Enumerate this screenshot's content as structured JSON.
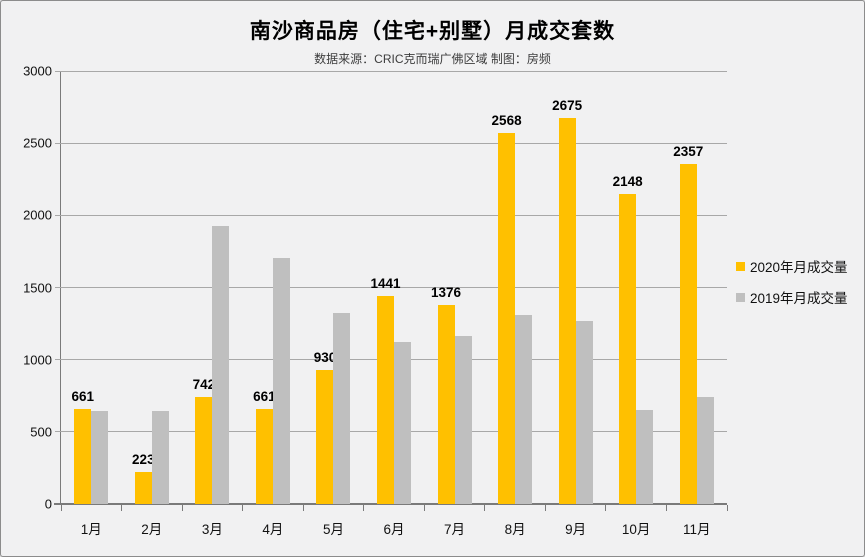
{
  "window": {
    "background": "#f1f1f2",
    "border_color": "#8c8c8c"
  },
  "header": {
    "title": "南沙商品房（住宅+别墅）月成交套数",
    "subtitle": "数据来源：CRIC克而瑞广佛区域 制图：房频"
  },
  "colors": {
    "series_2020": "#FFC000",
    "series_2019": "#BFBFBF",
    "gridline": "#a8a8a8",
    "axis": "#7a7a7a",
    "text": "#111111"
  },
  "chart_data": {
    "type": "bar",
    "title": "南沙商品房（住宅+别墅）月成交套数",
    "subtitle": "数据来源：CRIC克而瑞广佛区域 制图：房频",
    "categories": [
      "1月",
      "2月",
      "3月",
      "4月",
      "5月",
      "6月",
      "7月",
      "8月",
      "9月",
      "10月",
      "11月"
    ],
    "series": [
      {
        "name": "2020年月成交量",
        "color": "#FFC000",
        "values": [
          661,
          223,
          742,
          661,
          930,
          1441,
          1376,
          2568,
          2675,
          2148,
          2357
        ],
        "labels_shown": true
      },
      {
        "name": "2019年月成交量",
        "color": "#BFBFBF",
        "values": [
          645,
          645,
          1925,
          1705,
          1325,
          1125,
          1165,
          1310,
          1265,
          650,
          740
        ],
        "labels_shown": false
      }
    ],
    "ylim": [
      0,
      3000
    ],
    "yticks": [
      0,
      500,
      1000,
      1500,
      2000,
      2500,
      3000
    ],
    "grid": true,
    "legend_position": "right"
  }
}
